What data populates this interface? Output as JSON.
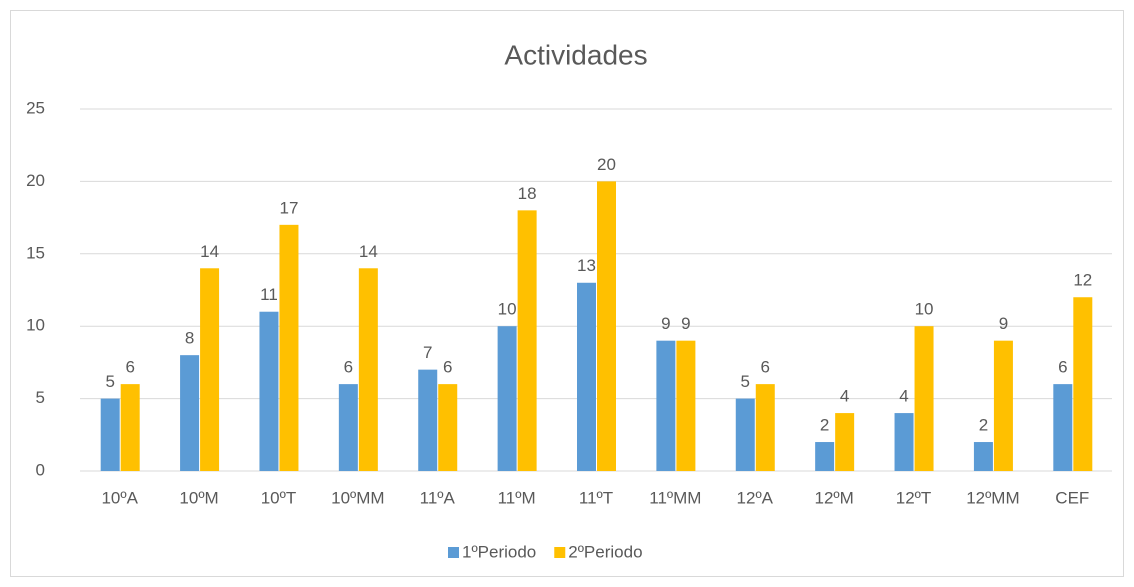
{
  "chart_data": {
    "type": "bar",
    "title": "Actividades",
    "categories": [
      "10ºA",
      "10ºM",
      "10ºT",
      "10ºMM",
      "11ºA",
      "11ºM",
      "11ºT",
      "11ºMM",
      "12ºA",
      "12ºM",
      "12ºT",
      "12ºMM",
      "CEF"
    ],
    "series": [
      {
        "name": "1ºPeriodo",
        "color": "#5b9bd5",
        "values": [
          5,
          8,
          11,
          6,
          7,
          10,
          13,
          9,
          5,
          2,
          4,
          2,
          6
        ]
      },
      {
        "name": "2ºPeriodo",
        "color": "#ffc000",
        "values": [
          6,
          14,
          17,
          14,
          6,
          18,
          20,
          9,
          6,
          4,
          10,
          9,
          12
        ]
      }
    ],
    "ylim": [
      0,
      25
    ],
    "yticks": [
      0,
      5,
      10,
      15,
      20,
      25
    ],
    "grid": true,
    "legend": "bottom"
  }
}
